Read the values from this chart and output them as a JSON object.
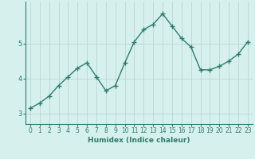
{
  "x": [
    0,
    1,
    2,
    3,
    4,
    5,
    6,
    7,
    8,
    9,
    10,
    11,
    12,
    13,
    14,
    15,
    16,
    17,
    18,
    19,
    20,
    21,
    22,
    23
  ],
  "y": [
    3.15,
    3.3,
    3.5,
    3.8,
    4.05,
    4.3,
    4.45,
    4.05,
    3.65,
    3.8,
    4.45,
    5.05,
    5.4,
    5.55,
    5.85,
    5.5,
    5.15,
    4.9,
    4.25,
    4.25,
    4.35,
    4.5,
    4.7,
    5.05
  ],
  "line_color": "#2e7d6e",
  "marker": "+",
  "marker_size": 4,
  "line_width": 1.0,
  "background_color": "#d6f0ee",
  "grid_color": "#b8d8d4",
  "xlabel": "Humidex (Indice chaleur)",
  "xlim": [
    -0.5,
    23.5
  ],
  "ylim": [
    2.7,
    6.2
  ],
  "yticks": [
    3,
    4,
    5
  ],
  "xticks": [
    0,
    1,
    2,
    3,
    4,
    5,
    6,
    7,
    8,
    9,
    10,
    11,
    12,
    13,
    14,
    15,
    16,
    17,
    18,
    19,
    20,
    21,
    22,
    23
  ],
  "tick_color": "#2e7d6e",
  "xlabel_fontsize": 6.5,
  "xlabel_color": "#2e7d6e",
  "tick_labelsize": 5.5
}
